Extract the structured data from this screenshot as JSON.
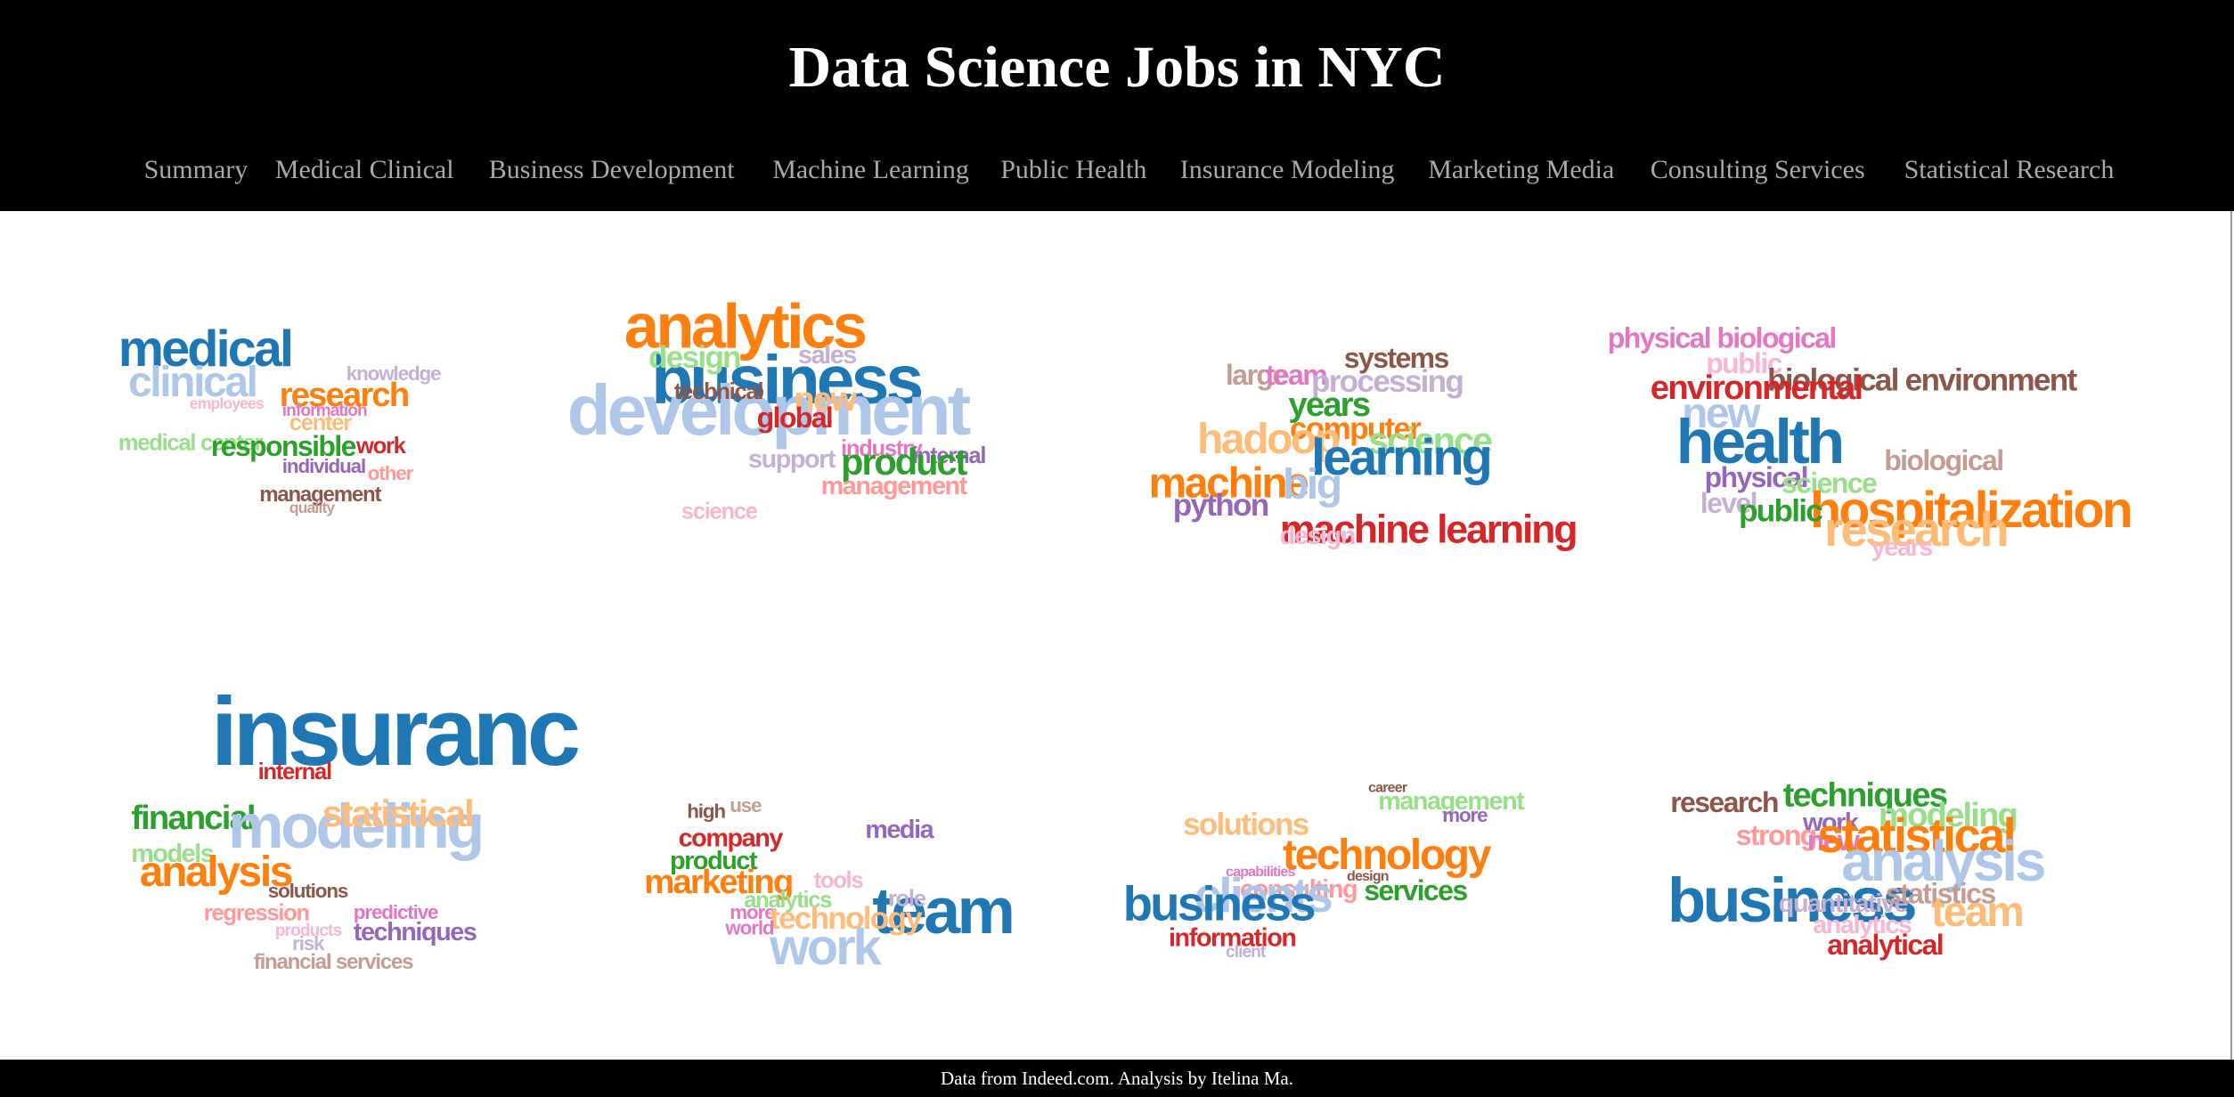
{
  "header": {
    "title": "Data Science Jobs in NYC",
    "nav": [
      "Summary",
      "Medical Clinical",
      "Business Development",
      "Machine Learning",
      "Public Health",
      "Insurance Modeling",
      "Marketing Media",
      "Consulting Services",
      "Statistical Research"
    ]
  },
  "clouds": [
    {
      "words": [
        {
          "text": "medical",
          "color": "#1f77b4"
        },
        {
          "text": "clinical",
          "color": "#aec7e8"
        },
        {
          "text": "research",
          "color": "#ff7f0e"
        },
        {
          "text": "knowledge",
          "color": "#c5b0d5"
        },
        {
          "text": "employees",
          "color": "#f7b6d2"
        },
        {
          "text": "information",
          "color": "#e377c2"
        },
        {
          "text": "center",
          "color": "#ffbb78"
        },
        {
          "text": "work",
          "color": "#d62728"
        },
        {
          "text": "medical center",
          "color": "#98df8a"
        },
        {
          "text": "responsible",
          "color": "#2ca02c"
        },
        {
          "text": "individual",
          "color": "#9467bd"
        },
        {
          "text": "other",
          "color": "#ff9896"
        },
        {
          "text": "management",
          "color": "#8c564b"
        },
        {
          "text": "quality",
          "color": "#c49c94"
        }
      ]
    },
    {
      "words": [
        {
          "text": "analytics",
          "color": "#ff7f0e"
        },
        {
          "text": "business",
          "color": "#1f77b4"
        },
        {
          "text": "design",
          "color": "#98df8a"
        },
        {
          "text": "sales",
          "color": "#c5b0d5"
        },
        {
          "text": "development",
          "color": "#aec7e8"
        },
        {
          "text": "technical",
          "color": "#8c564b"
        },
        {
          "text": "new",
          "color": "#ffbb78"
        },
        {
          "text": "global",
          "color": "#d62728"
        },
        {
          "text": "industry",
          "color": "#e377c2"
        },
        {
          "text": "internal",
          "color": "#9467bd"
        },
        {
          "text": "product",
          "color": "#2ca02c"
        },
        {
          "text": "support",
          "color": "#c5b0d5"
        },
        {
          "text": "management",
          "color": "#ff9896"
        },
        {
          "text": "science",
          "color": "#f7b6d2"
        }
      ]
    },
    {
      "words": [
        {
          "text": "systems",
          "color": "#8c564b"
        },
        {
          "text": "large",
          "color": "#c49c94"
        },
        {
          "text": "team",
          "color": "#e377c2"
        },
        {
          "text": "processing",
          "color": "#c5b0d5"
        },
        {
          "text": "years",
          "color": "#2ca02c"
        },
        {
          "text": "computer",
          "color": "#ff7f0e"
        },
        {
          "text": "science",
          "color": "#98df8a"
        },
        {
          "text": "hadoop",
          "color": "#ffbb78"
        },
        {
          "text": "learning",
          "color": "#1f77b4"
        },
        {
          "text": "machine",
          "color": "#ff7f0e"
        },
        {
          "text": "big",
          "color": "#aec7e8"
        },
        {
          "text": "python",
          "color": "#9467bd"
        },
        {
          "text": "machine learning",
          "color": "#d62728"
        },
        {
          "text": "design",
          "color": "#f7b6d2"
        }
      ]
    },
    {
      "words": [
        {
          "text": "physical biological",
          "color": "#e377c2"
        },
        {
          "text": "public",
          "color": "#f7b6d2"
        },
        {
          "text": "biological environment",
          "color": "#8c564b"
        },
        {
          "text": "environmental",
          "color": "#d62728"
        },
        {
          "text": "new",
          "color": "#aec7e8"
        },
        {
          "text": "health",
          "color": "#1f77b4"
        },
        {
          "text": "biological",
          "color": "#c49c94"
        },
        {
          "text": "physical",
          "color": "#9467bd"
        },
        {
          "text": "science",
          "color": "#98df8a"
        },
        {
          "text": "level",
          "color": "#c5b0d5"
        },
        {
          "text": "hospitalization",
          "color": "#ff7f0e"
        },
        {
          "text": "public",
          "color": "#2ca02c"
        },
        {
          "text": "research",
          "color": "#ffbb78"
        },
        {
          "text": "years",
          "color": "#f7b6d2"
        }
      ]
    },
    {
      "words": [
        {
          "text": "insuranc",
          "color": "#1f77b4"
        },
        {
          "text": "internal",
          "color": "#d62728"
        },
        {
          "text": "financial",
          "color": "#2ca02c"
        },
        {
          "text": "modeling",
          "color": "#aec7e8"
        },
        {
          "text": "statistical",
          "color": "#ffbb78"
        },
        {
          "text": "models",
          "color": "#98df8a"
        },
        {
          "text": "analysis",
          "color": "#ff7f0e"
        },
        {
          "text": "solutions",
          "color": "#8c564b"
        },
        {
          "text": "regression",
          "color": "#ff9896"
        },
        {
          "text": "predictive",
          "color": "#e377c2"
        },
        {
          "text": "techniques",
          "color": "#9467bd"
        },
        {
          "text": "products",
          "color": "#f7b6d2"
        },
        {
          "text": "risk",
          "color": "#c5b0d5"
        },
        {
          "text": "financial services",
          "color": "#c49c94"
        }
      ]
    },
    {
      "words": [
        {
          "text": "high",
          "color": "#8c564b"
        },
        {
          "text": "use",
          "color": "#c49c94"
        },
        {
          "text": "media",
          "color": "#9467bd"
        },
        {
          "text": "company",
          "color": "#d62728"
        },
        {
          "text": "product",
          "color": "#2ca02c"
        },
        {
          "text": "tools",
          "color": "#f7b6d2"
        },
        {
          "text": "marketing",
          "color": "#ff7f0e"
        },
        {
          "text": "analytics",
          "color": "#98df8a"
        },
        {
          "text": "team",
          "color": "#1f77b4"
        },
        {
          "text": "role",
          "color": "#c5b0d5"
        },
        {
          "text": "more",
          "color": "#e377c2"
        },
        {
          "text": "technology",
          "color": "#ffbb78"
        },
        {
          "text": "world",
          "color": "#e377c2"
        },
        {
          "text": "work",
          "color": "#aec7e8"
        }
      ]
    },
    {
      "words": [
        {
          "text": "career",
          "color": "#8c564b"
        },
        {
          "text": "management",
          "color": "#98df8a"
        },
        {
          "text": "more",
          "color": "#9467bd"
        },
        {
          "text": "solutions",
          "color": "#ffbb78"
        },
        {
          "text": "technology",
          "color": "#ff7f0e"
        },
        {
          "text": "capabilities",
          "color": "#e377c2"
        },
        {
          "text": "design",
          "color": "#8c564b"
        },
        {
          "text": "consulting",
          "color": "#ff9896"
        },
        {
          "text": "services",
          "color": "#2ca02c"
        },
        {
          "text": "clients",
          "color": "#aec7e8"
        },
        {
          "text": "business",
          "color": "#1f77b4"
        },
        {
          "text": "information",
          "color": "#d62728"
        },
        {
          "text": "client",
          "color": "#c5b0d5"
        }
      ]
    },
    {
      "words": [
        {
          "text": "research",
          "color": "#8c564b"
        },
        {
          "text": "techniques",
          "color": "#2ca02c"
        },
        {
          "text": "modeling",
          "color": "#98df8a"
        },
        {
          "text": "work",
          "color": "#9467bd"
        },
        {
          "text": "strong",
          "color": "#ff9896"
        },
        {
          "text": "new",
          "color": "#e377c2"
        },
        {
          "text": "statistical",
          "color": "#ff7f0e"
        },
        {
          "text": "analysis",
          "color": "#aec7e8"
        },
        {
          "text": "business",
          "color": "#1f77b4"
        },
        {
          "text": "quantitative",
          "color": "#c5b0d5"
        },
        {
          "text": "statistics",
          "color": "#c49c94"
        },
        {
          "text": "team",
          "color": "#ffbb78"
        },
        {
          "text": "analytics",
          "color": "#f7b6d2"
        },
        {
          "text": "analytical",
          "color": "#d62728"
        }
      ]
    }
  ],
  "footer": "Data from Indeed.com. Analysis by Itelina Ma."
}
